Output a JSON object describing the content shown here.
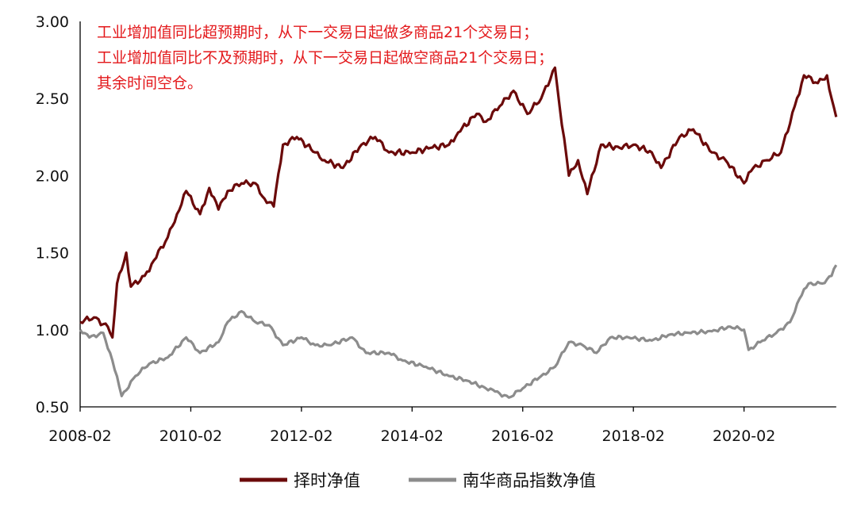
{
  "chart_data": {
    "type": "line",
    "title": "",
    "xlabel": "",
    "ylabel": "",
    "ylim": [
      0.5,
      3.0
    ],
    "yticks": [
      "0.50",
      "1.00",
      "1.50",
      "2.00",
      "2.50",
      "3.00"
    ],
    "xticks": [
      "2008-02",
      "2010-02",
      "2012-02",
      "2014-02",
      "2016-02",
      "2018-02",
      "2020-02"
    ],
    "xlim": [
      "2008-02",
      "2021-10"
    ],
    "grid": false,
    "legend_position": "bottom",
    "annotation": [
      "工业增加值同比超预期时，从下一交易日起做多商品21个交易日；",
      "工业增加值同比不及预期时，从下一交易日起做空商品21个交易日；",
      "其余时间空仓。"
    ],
    "series": [
      {
        "name": "择时净值",
        "color": "#6b0a0a",
        "points": [
          [
            "2008-02",
            1.05
          ],
          [
            "2008-05",
            1.08
          ],
          [
            "2008-08",
            1.02
          ],
          [
            "2008-09",
            0.95
          ],
          [
            "2008-10",
            1.3
          ],
          [
            "2008-12",
            1.5
          ],
          [
            "2009-01",
            1.28
          ],
          [
            "2009-04",
            1.35
          ],
          [
            "2009-06",
            1.45
          ],
          [
            "2009-09",
            1.6
          ],
          [
            "2009-11",
            1.75
          ],
          [
            "2010-01",
            1.9
          ],
          [
            "2010-04",
            1.75
          ],
          [
            "2010-06",
            1.92
          ],
          [
            "2010-08",
            1.78
          ],
          [
            "2010-10",
            1.9
          ],
          [
            "2011-01",
            1.95
          ],
          [
            "2011-04",
            1.95
          ],
          [
            "2011-06",
            1.85
          ],
          [
            "2011-08",
            1.8
          ],
          [
            "2011-10",
            2.2
          ],
          [
            "2012-01",
            2.25
          ],
          [
            "2012-05",
            2.15
          ],
          [
            "2012-07",
            2.1
          ],
          [
            "2012-11",
            2.05
          ],
          [
            "2013-03",
            2.2
          ],
          [
            "2013-06",
            2.25
          ],
          [
            "2013-09",
            2.15
          ],
          [
            "2014-02",
            2.15
          ],
          [
            "2014-06",
            2.18
          ],
          [
            "2014-10",
            2.2
          ],
          [
            "2014-12",
            2.28
          ],
          [
            "2015-04",
            2.4
          ],
          [
            "2015-06",
            2.35
          ],
          [
            "2015-09",
            2.45
          ],
          [
            "2015-12",
            2.55
          ],
          [
            "2016-03",
            2.4
          ],
          [
            "2016-06",
            2.5
          ],
          [
            "2016-09",
            2.7
          ],
          [
            "2016-10",
            2.45
          ],
          [
            "2016-12",
            2.0
          ],
          [
            "2017-02",
            2.1
          ],
          [
            "2017-04",
            1.88
          ],
          [
            "2017-07",
            2.2
          ],
          [
            "2017-11",
            2.18
          ],
          [
            "2018-02",
            2.2
          ],
          [
            "2018-06",
            2.15
          ],
          [
            "2018-08",
            2.05
          ],
          [
            "2018-12",
            2.25
          ],
          [
            "2019-03",
            2.3
          ],
          [
            "2019-07",
            2.15
          ],
          [
            "2019-10",
            2.1
          ],
          [
            "2020-02",
            1.95
          ],
          [
            "2020-04",
            2.05
          ],
          [
            "2020-07",
            2.1
          ],
          [
            "2020-10",
            2.15
          ],
          [
            "2021-01",
            2.45
          ],
          [
            "2021-03",
            2.65
          ],
          [
            "2021-06",
            2.6
          ],
          [
            "2021-08",
            2.65
          ],
          [
            "2021-09",
            2.5
          ],
          [
            "2021-10",
            2.38
          ]
        ]
      },
      {
        "name": "南华商品指数净值",
        "color": "#8c8c8c",
        "points": [
          [
            "2008-02",
            1.0
          ],
          [
            "2008-04",
            0.95
          ],
          [
            "2008-07",
            0.98
          ],
          [
            "2008-09",
            0.8
          ],
          [
            "2008-11",
            0.57
          ],
          [
            "2009-02",
            0.7
          ],
          [
            "2009-05",
            0.78
          ],
          [
            "2009-09",
            0.82
          ],
          [
            "2010-01",
            0.95
          ],
          [
            "2010-04",
            0.85
          ],
          [
            "2010-08",
            0.92
          ],
          [
            "2010-10",
            1.05
          ],
          [
            "2011-01",
            1.12
          ],
          [
            "2011-04",
            1.05
          ],
          [
            "2011-07",
            1.03
          ],
          [
            "2011-10",
            0.9
          ],
          [
            "2012-02",
            0.95
          ],
          [
            "2012-05",
            0.9
          ],
          [
            "2012-08",
            0.9
          ],
          [
            "2013-01",
            0.95
          ],
          [
            "2013-04",
            0.85
          ],
          [
            "2013-09",
            0.85
          ],
          [
            "2013-12",
            0.8
          ],
          [
            "2014-05",
            0.76
          ],
          [
            "2014-10",
            0.7
          ],
          [
            "2015-02",
            0.67
          ],
          [
            "2015-06",
            0.62
          ],
          [
            "2015-08",
            0.6
          ],
          [
            "2015-11",
            0.56
          ],
          [
            "2016-02",
            0.62
          ],
          [
            "2016-06",
            0.7
          ],
          [
            "2016-09",
            0.76
          ],
          [
            "2016-12",
            0.92
          ],
          [
            "2017-03",
            0.9
          ],
          [
            "2017-06",
            0.85
          ],
          [
            "2017-09",
            0.95
          ],
          [
            "2018-01",
            0.95
          ],
          [
            "2018-06",
            0.93
          ],
          [
            "2018-10",
            0.97
          ],
          [
            "2019-02",
            0.98
          ],
          [
            "2019-07",
            0.99
          ],
          [
            "2019-11",
            1.02
          ],
          [
            "2020-02",
            1.0
          ],
          [
            "2020-03",
            0.87
          ],
          [
            "2020-06",
            0.93
          ],
          [
            "2020-09",
            0.98
          ],
          [
            "2020-12",
            1.05
          ],
          [
            "2021-02",
            1.2
          ],
          [
            "2021-04",
            1.3
          ],
          [
            "2021-07",
            1.3
          ],
          [
            "2021-09",
            1.35
          ],
          [
            "2021-10",
            1.42
          ]
        ]
      }
    ]
  }
}
